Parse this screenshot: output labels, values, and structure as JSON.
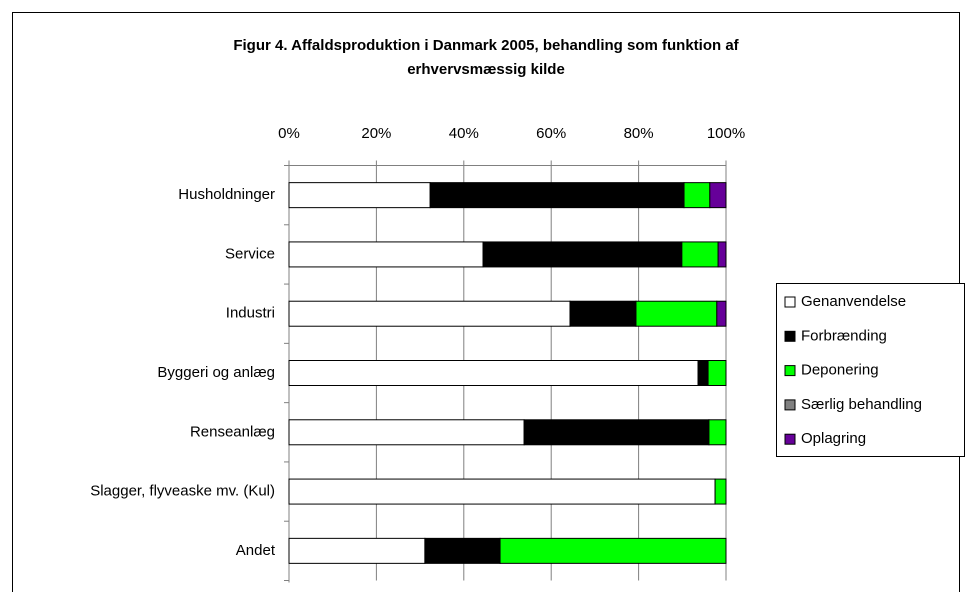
{
  "chart_data": {
    "type": "stacked_barh",
    "title": [
      "Figur 4. Affaldsproduktion i Danmark 2005, behandling som funktion af",
      "erhvervsmæssig kilde"
    ],
    "categories": [
      "Husholdninger",
      "Service",
      "Industri",
      "Byggeri og anlæg",
      "Renseanlæg",
      "Slagger, flyveaske mv. (Kul)",
      "Andet"
    ],
    "series": [
      {
        "name": "Genanvendelse",
        "color": "#ffffff",
        "values": [
          32.3,
          44.4,
          64.3,
          93.6,
          53.8,
          97.5,
          31.1
        ]
      },
      {
        "name": "Forbrænding",
        "color": "#000000",
        "values": [
          58.1,
          45.5,
          15.1,
          2.3,
          42.3,
          0,
          17.2
        ]
      },
      {
        "name": "Deponering",
        "color": "#00ff00",
        "values": [
          5.9,
          8.3,
          18.5,
          4.1,
          3.9,
          2.5,
          51.7
        ]
      },
      {
        "name": "Særlig behandling",
        "color": "#808080",
        "values": [
          0,
          0,
          0,
          0,
          0,
          0,
          0
        ]
      },
      {
        "name": "Oplagring",
        "color": "#660099",
        "values": [
          3.7,
          1.8,
          2.1,
          0,
          0,
          0,
          0
        ]
      }
    ],
    "xlim": [
      0,
      100
    ],
    "xticks": [
      {
        "value": 0,
        "label": "0%"
      },
      {
        "value": 20,
        "label": "20%"
      },
      {
        "value": 40,
        "label": "40%"
      },
      {
        "value": 60,
        "label": "60%"
      },
      {
        "value": 80,
        "label": "80%"
      },
      {
        "value": 100,
        "label": "100%"
      }
    ],
    "grid": true,
    "legend": "right"
  }
}
